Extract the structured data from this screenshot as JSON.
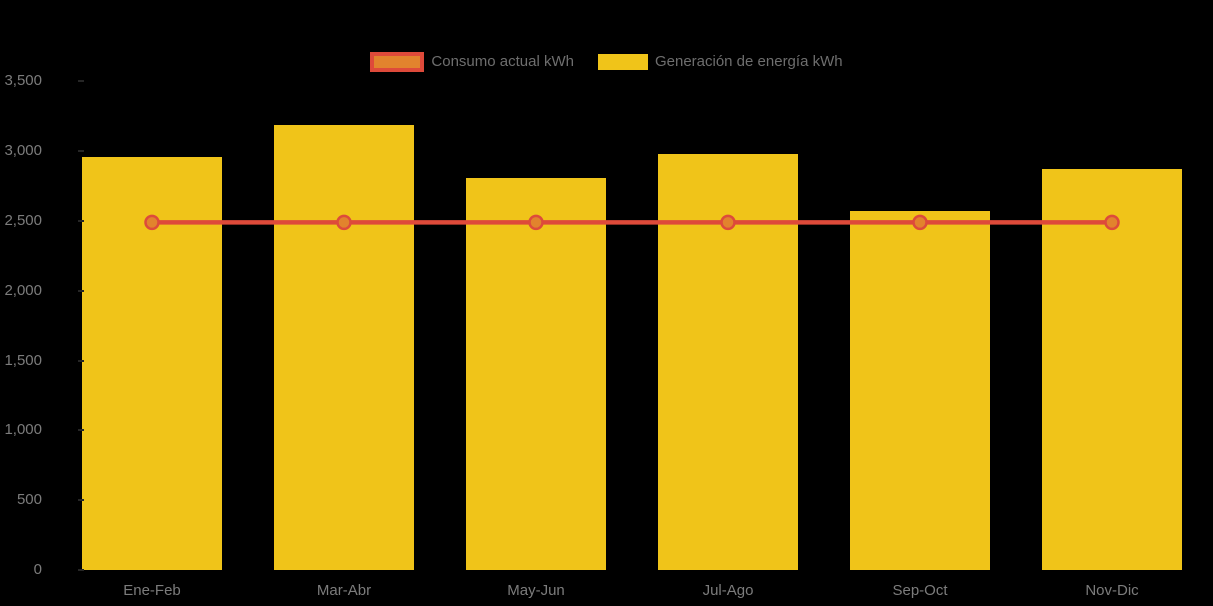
{
  "colors": {
    "background": "#000000",
    "bar": "#F0C419",
    "line": "#DE4A3A",
    "marker_fill": "#E2832D",
    "marker_stroke": "#DD4B3B",
    "axis_text": "#7C7C7C",
    "legend_text": "#6E6E6E",
    "tick": "#262626"
  },
  "legend": {
    "items": [
      {
        "label": "Consumo actual kWh",
        "swatch": "line-box"
      },
      {
        "label": "Generación de energía kWh",
        "swatch": "bar-box"
      }
    ]
  },
  "chart_data": {
    "type": "combo (bar + line)",
    "categories": [
      "Ene-Feb",
      "Mar-Abr",
      "May-Jun",
      "Jul-Ago",
      "Sep-Oct",
      "Nov-Dic"
    ],
    "series": [
      {
        "name": "Consumo actual kWh",
        "type": "line",
        "color": "#DE4A3A",
        "marker_fill": "#E2832D",
        "values": [
          2490,
          2490,
          2490,
          2490,
          2490,
          2490
        ]
      },
      {
        "name": "Generación de energía kWh",
        "type": "bar",
        "color": "#F0C419",
        "values": [
          2960,
          3190,
          2810,
          2980,
          2570,
          2870
        ]
      }
    ],
    "title": "",
    "xlabel": "",
    "ylabel": "",
    "ylim": [
      0,
      3500
    ],
    "ytick_step": 500,
    "yticklabels": [
      "0",
      "500",
      "1,000",
      "1,500",
      "2,000",
      "2,500",
      "3,000",
      "3,500"
    ],
    "legend_position": "top-center",
    "grid": false
  }
}
